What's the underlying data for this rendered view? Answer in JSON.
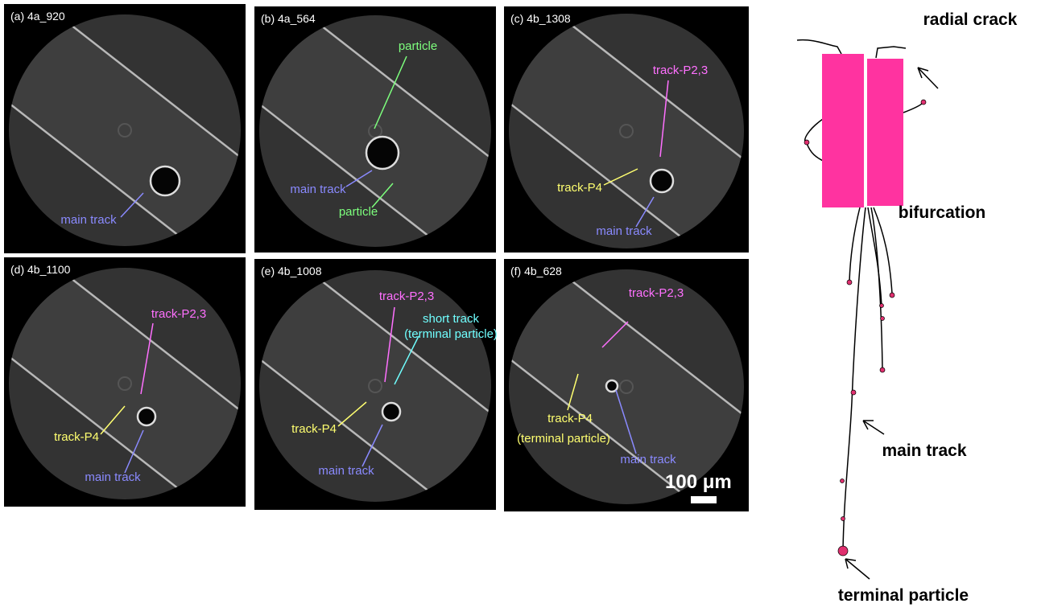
{
  "panels": [
    {
      "label": "(a) 4a_920",
      "annotations": [
        "main track"
      ]
    },
    {
      "label": "(b) 4a_564",
      "annotations": [
        "particle",
        "main track",
        "particle"
      ]
    },
    {
      "label": "(c) 4b_1308",
      "annotations": [
        "track-P2,3",
        "track-P4",
        "main track"
      ]
    },
    {
      "label": "(d) 4b_1100",
      "annotations": [
        "track-P2,3",
        "track-P4",
        "main track"
      ]
    },
    {
      "label": "(e) 4b_1008",
      "annotations": [
        "track-P2,3",
        "short track",
        "(terminal particle)",
        "track-P4",
        "main track"
      ]
    },
    {
      "label": "(f) 4b_628",
      "annotations": [
        "track-P2,3",
        "track-P4",
        "(terminal particle)",
        "main track"
      ]
    }
  ],
  "scale_bar": "100 μm",
  "diagram": {
    "labels": [
      "radial crack",
      "bifurcation",
      "main track",
      "terminal particle"
    ]
  }
}
